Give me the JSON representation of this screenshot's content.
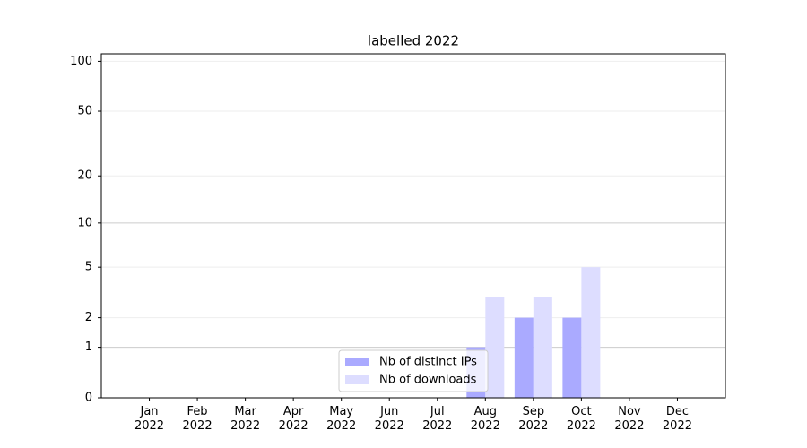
{
  "chart_data": {
    "type": "bar",
    "title": "labelled 2022",
    "categories": [
      "Jan 2022",
      "Feb 2022",
      "Mar 2022",
      "Apr 2022",
      "May 2022",
      "Jun 2022",
      "Jul 2022",
      "Aug 2022",
      "Sep 2022",
      "Oct 2022",
      "Nov 2022",
      "Dec 2022"
    ],
    "series": [
      {
        "name": "Nb of distinct IPs",
        "color": "#aaaaff",
        "values": [
          0,
          0,
          0,
          0,
          0,
          0,
          0,
          1,
          2,
          2,
          0,
          0
        ]
      },
      {
        "name": "Nb of downloads",
        "color": "#ddddff",
        "values": [
          0,
          0,
          0,
          0,
          0,
          0,
          0,
          3,
          3,
          5,
          0,
          0
        ]
      }
    ],
    "yscale": "log1p",
    "ylim": [
      0,
      111
    ],
    "yticks": [
      0,
      1,
      2,
      5,
      10,
      20,
      50,
      100
    ],
    "grid": true,
    "legend": "lower center"
  }
}
